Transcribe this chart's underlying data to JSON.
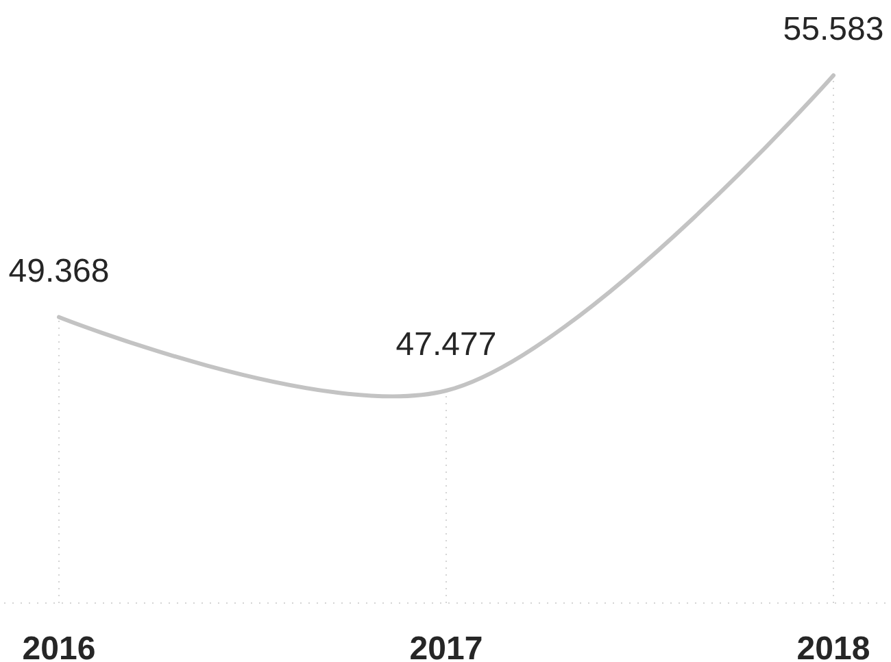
{
  "chart_data": {
    "type": "line",
    "categories": [
      "2016",
      "2017",
      "2018"
    ],
    "values": [
      49.368,
      47.477,
      55.583
    ],
    "color": "#c3c3c3",
    "data_labels": true,
    "grid": "x",
    "tick_labels": "x",
    "marker": "none",
    "line_style": "solid"
  }
}
